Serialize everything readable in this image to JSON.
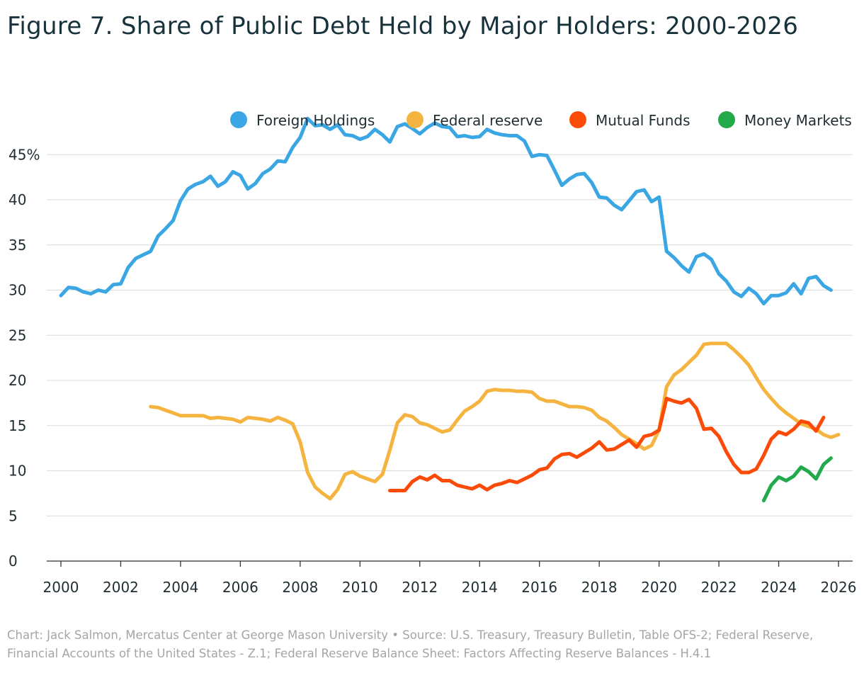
{
  "chart_data": {
    "type": "line",
    "title": "Figure 7. Share of Public Debt Held by Major Holders: 2000-2026",
    "xlabel": "",
    "ylabel": "",
    "xlim": [
      2000,
      2026
    ],
    "ylim": [
      0,
      48
    ],
    "x_ticks": [
      "2000",
      "2002",
      "2004",
      "2006",
      "2008",
      "2010",
      "2012",
      "2014",
      "2016",
      "2018",
      "2020",
      "2022",
      "2024",
      "2026"
    ],
    "y_ticks": [
      {
        "value": 0,
        "label": "0"
      },
      {
        "value": 5,
        "label": "5"
      },
      {
        "value": 10,
        "label": "10"
      },
      {
        "value": 15,
        "label": "15"
      },
      {
        "value": 20,
        "label": "20"
      },
      {
        "value": 25,
        "label": "25"
      },
      {
        "value": 30,
        "label": "30"
      },
      {
        "value": 35,
        "label": "35"
      },
      {
        "value": 40,
        "label": "40"
      },
      {
        "value": 45,
        "label": "45%"
      }
    ],
    "grid": true,
    "legend_position": "top-right",
    "series": [
      {
        "name": "Foreign Holdings",
        "color": "#3aa6e3",
        "x": [
          2000.0,
          2000.25,
          2000.5,
          2000.75,
          2001.0,
          2001.25,
          2001.5,
          2001.75,
          2002.0,
          2002.25,
          2002.5,
          2002.75,
          2003.0,
          2003.25,
          2003.5,
          2003.75,
          2004.0,
          2004.25,
          2004.5,
          2004.75,
          2005.0,
          2005.25,
          2005.5,
          2005.75,
          2006.0,
          2006.25,
          2006.5,
          2006.75,
          2007.0,
          2007.25,
          2007.5,
          2007.75,
          2008.0,
          2008.25,
          2008.5,
          2008.75,
          2009.0,
          2009.25,
          2009.5,
          2009.75,
          2010.0,
          2010.25,
          2010.5,
          2010.75,
          2011.0,
          2011.25,
          2011.5,
          2011.75,
          2012.0,
          2012.25,
          2012.5,
          2012.75,
          2013.0,
          2013.25,
          2013.5,
          2013.75,
          2014.0,
          2014.25,
          2014.5,
          2014.75,
          2015.0,
          2015.25,
          2015.5,
          2015.75,
          2016.0,
          2016.25,
          2016.5,
          2016.75,
          2017.0,
          2017.25,
          2017.5,
          2017.75,
          2018.0,
          2018.25,
          2018.5,
          2018.75,
          2019.0,
          2019.25,
          2019.5,
          2019.75,
          2020.0,
          2020.25,
          2020.5,
          2020.75,
          2021.0,
          2021.25,
          2021.5,
          2021.75,
          2022.0,
          2022.25,
          2022.5,
          2022.75,
          2023.0,
          2023.25,
          2023.5,
          2023.75,
          2024.0,
          2024.25,
          2024.5,
          2024.75,
          2025.0,
          2025.25,
          2025.5,
          2025.75
        ],
        "values": [
          29.4,
          30.3,
          30.2,
          29.8,
          29.6,
          30.0,
          29.8,
          30.6,
          30.7,
          32.5,
          33.5,
          33.9,
          34.3,
          36.0,
          36.8,
          37.7,
          39.9,
          41.2,
          41.7,
          42.0,
          42.6,
          41.5,
          42.0,
          43.1,
          42.7,
          41.2,
          41.8,
          42.9,
          43.4,
          44.3,
          44.2,
          45.8,
          46.9,
          49.0,
          48.2,
          48.3,
          47.8,
          48.3,
          47.2,
          47.1,
          46.7,
          47.0,
          47.8,
          47.2,
          46.4,
          48.1,
          48.4,
          47.9,
          47.3,
          48.0,
          48.5,
          48.1,
          48.0,
          47.0,
          47.1,
          46.9,
          47.0,
          47.8,
          47.4,
          47.2,
          47.1,
          47.1,
          46.5,
          44.8,
          45.0,
          44.9,
          43.3,
          41.6,
          42.3,
          42.8,
          42.9,
          41.9,
          40.3,
          40.2,
          39.4,
          38.9,
          39.9,
          40.9,
          41.1,
          39.8,
          40.3,
          34.3,
          33.6,
          32.7,
          32.0,
          33.7,
          34.0,
          33.4,
          31.8,
          31.0,
          29.8,
          29.3,
          30.2,
          29.6,
          28.5,
          29.4,
          29.4,
          29.7,
          30.7,
          29.6,
          31.3,
          31.5,
          30.5,
          30.0
        ]
      },
      {
        "name": "Federal reserve",
        "color": "#f5b33f",
        "x": [
          2003.0,
          2003.25,
          2003.5,
          2003.75,
          2004.0,
          2004.25,
          2004.5,
          2004.75,
          2005.0,
          2005.25,
          2005.5,
          2005.75,
          2006.0,
          2006.25,
          2006.5,
          2006.75,
          2007.0,
          2007.25,
          2007.5,
          2007.75,
          2008.0,
          2008.25,
          2008.5,
          2008.75,
          2009.0,
          2009.25,
          2009.5,
          2009.75,
          2010.0,
          2010.25,
          2010.5,
          2010.75,
          2011.0,
          2011.25,
          2011.5,
          2011.75,
          2012.0,
          2012.25,
          2012.5,
          2012.75,
          2013.0,
          2013.25,
          2013.5,
          2013.75,
          2014.0,
          2014.25,
          2014.5,
          2014.75,
          2015.0,
          2015.25,
          2015.5,
          2015.75,
          2016.0,
          2016.25,
          2016.5,
          2016.75,
          2017.0,
          2017.25,
          2017.5,
          2017.75,
          2018.0,
          2018.25,
          2018.5,
          2018.75,
          2019.0,
          2019.25,
          2019.5,
          2019.75,
          2020.0,
          2020.25,
          2020.5,
          2020.75,
          2021.0,
          2021.25,
          2021.5,
          2021.75,
          2022.0,
          2022.25,
          2022.5,
          2022.75,
          2023.0,
          2023.25,
          2023.5,
          2023.75,
          2024.0,
          2024.25,
          2024.5,
          2024.75,
          2025.0,
          2025.25,
          2025.5,
          2025.75,
          2026.0
        ],
        "values": [
          17.1,
          17.0,
          16.7,
          16.4,
          16.1,
          16.1,
          16.1,
          16.1,
          15.8,
          15.9,
          15.8,
          15.7,
          15.4,
          15.9,
          15.8,
          15.7,
          15.5,
          15.9,
          15.6,
          15.2,
          13.2,
          9.8,
          8.2,
          7.5,
          6.9,
          7.9,
          9.6,
          9.9,
          9.4,
          9.1,
          8.8,
          9.6,
          12.3,
          15.3,
          16.2,
          16.0,
          15.3,
          15.1,
          14.7,
          14.3,
          14.5,
          15.6,
          16.6,
          17.1,
          17.7,
          18.8,
          19.0,
          18.9,
          18.9,
          18.8,
          18.8,
          18.7,
          18.0,
          17.7,
          17.7,
          17.4,
          17.1,
          17.1,
          17.0,
          16.7,
          15.9,
          15.5,
          14.8,
          14.0,
          13.5,
          13.0,
          12.4,
          12.8,
          14.5,
          19.3,
          20.6,
          21.2,
          22.0,
          22.8,
          24.0,
          24.1,
          24.1,
          24.1,
          23.4,
          22.6,
          21.7,
          20.3,
          19.0,
          18.0,
          17.1,
          16.4,
          15.8,
          15.2,
          14.9,
          14.6,
          14.0,
          13.7,
          14.0
        ]
      },
      {
        "name": "Mutual Funds",
        "color": "#fc4b08",
        "x": [
          2011.0,
          2011.25,
          2011.5,
          2011.75,
          2012.0,
          2012.25,
          2012.5,
          2012.75,
          2013.0,
          2013.25,
          2013.5,
          2013.75,
          2014.0,
          2014.25,
          2014.5,
          2014.75,
          2015.0,
          2015.25,
          2015.5,
          2015.75,
          2016.0,
          2016.25,
          2016.5,
          2016.75,
          2017.0,
          2017.25,
          2017.5,
          2017.75,
          2018.0,
          2018.25,
          2018.5,
          2018.75,
          2019.0,
          2019.25,
          2019.5,
          2019.75,
          2020.0,
          2020.25,
          2020.5,
          2020.75,
          2021.0,
          2021.25,
          2021.5,
          2021.75,
          2022.0,
          2022.25,
          2022.5,
          2022.75,
          2023.0,
          2023.25,
          2023.5,
          2023.75,
          2024.0,
          2024.25,
          2024.5,
          2024.75,
          2025.0,
          2025.25,
          2025.5
        ],
        "values": [
          7.8,
          7.8,
          7.8,
          8.8,
          9.3,
          9.0,
          9.5,
          8.9,
          8.9,
          8.4,
          8.2,
          8.0,
          8.4,
          7.9,
          8.4,
          8.6,
          8.9,
          8.7,
          9.1,
          9.5,
          10.1,
          10.3,
          11.3,
          11.8,
          11.9,
          11.5,
          12.0,
          12.5,
          13.2,
          12.3,
          12.4,
          12.9,
          13.4,
          12.6,
          13.8,
          14.0,
          14.5,
          18.0,
          17.7,
          17.5,
          17.9,
          16.9,
          14.6,
          14.7,
          13.8,
          12.1,
          10.7,
          9.8,
          9.8,
          10.2,
          11.7,
          13.5,
          14.3,
          14.0,
          14.6,
          15.5,
          15.3,
          14.4,
          15.9
        ]
      },
      {
        "name": "Money Markets",
        "color": "#22a94a",
        "x": [
          2023.5,
          2023.75,
          2024.0,
          2024.25,
          2024.5,
          2024.75,
          2025.0,
          2025.25,
          2025.5,
          2025.75
        ],
        "values": [
          6.7,
          8.4,
          9.3,
          8.9,
          9.4,
          10.4,
          9.9,
          9.1,
          10.7,
          11.4
        ]
      }
    ]
  },
  "source_note": "Chart: Jack Salmon, Mercatus Center at George Mason University • Source: U.S. Treasury, Treasury Bulletin, Table OFS-2; Federal Reserve, Financial Accounts of the United States - Z.1; Federal Reserve Balance Sheet: Factors Affecting Reserve Balances - H.4.1"
}
